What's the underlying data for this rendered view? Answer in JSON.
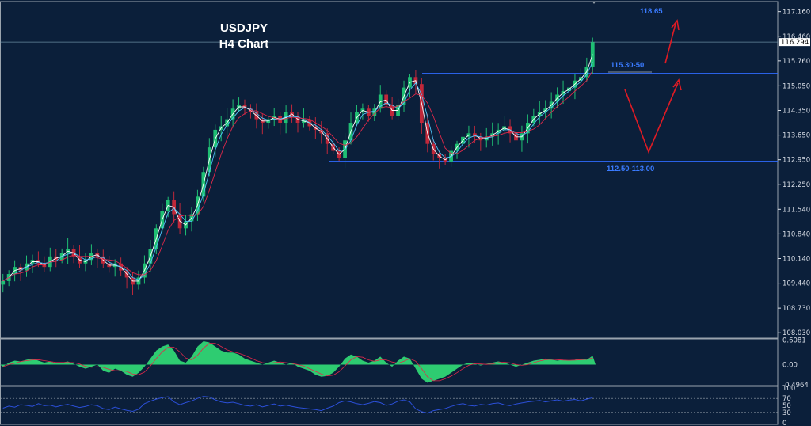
{
  "title": {
    "symbol": "USDJPY",
    "timeframe": "H4 Chart"
  },
  "colors": {
    "background": "#0b1f3a",
    "bull_candle": "#1fbf73",
    "bear_candle": "#c0283a",
    "ma_fast": "#ffffff",
    "ma_mid": "#4fc3f7",
    "ma_slow": "#e0294a",
    "level_line": "#2f6bff",
    "annotation_text": "#3a7bff",
    "arrow": "#e01b24",
    "histogram": "#2ecc71",
    "rsi_line": "#2b4fd8"
  },
  "chart_data": [
    {
      "type": "line",
      "name": "price",
      "y_ticks": [
        "117.160",
        "116.460",
        "115.760",
        "115.050",
        "114.350",
        "113.650",
        "112.950",
        "112.250",
        "111.540",
        "110.840",
        "110.140",
        "109.440",
        "108.730",
        "108.030"
      ],
      "current_price": "116.294",
      "ylim": [
        107.9,
        117.4
      ],
      "series": [
        {
          "name": "",
          "values": [
            109.5,
            109.7,
            109.9,
            109.8,
            110.0,
            110.1,
            110.0,
            109.9,
            110.2,
            110.1,
            110.3,
            110.4,
            110.2,
            110.0,
            110.1,
            110.3,
            110.2,
            110.0,
            109.9,
            110.0,
            109.8,
            109.6,
            109.4,
            109.6,
            110.0,
            110.4,
            111.0,
            111.5,
            111.8,
            111.4,
            111.0,
            111.2,
            111.4,
            111.9,
            112.6,
            113.3,
            113.8,
            113.9,
            114.1,
            114.4,
            114.5,
            114.4,
            114.3,
            114.1,
            114.0,
            114.1,
            114.2,
            114.0,
            114.3,
            114.2,
            114.0,
            114.1,
            113.9,
            113.8,
            113.7,
            113.4,
            113.2,
            113.0,
            113.5,
            114.0,
            114.3,
            114.4,
            114.2,
            114.4,
            114.8,
            114.5,
            114.2,
            114.5,
            115.0,
            115.3,
            115.1,
            114.0,
            113.4,
            113.1,
            113.0,
            112.9,
            113.2,
            113.4,
            113.6,
            113.7,
            113.6,
            113.5,
            113.6,
            113.7,
            113.8,
            113.9,
            113.7,
            113.5,
            113.7,
            114.0,
            114.2,
            114.3,
            114.4,
            114.6,
            114.8,
            114.9,
            115.0,
            115.2,
            115.3,
            115.6,
            116.29
          ]
        }
      ],
      "annotations": [
        "118.65",
        "115.30-50",
        "112.50-113.00"
      ],
      "levels": [
        115.4,
        112.9
      ]
    },
    {
      "type": "area",
      "name": "oscillator",
      "y_ticks": [
        "0.6081",
        "0.00",
        "-0.4964"
      ],
      "ylim": [
        -0.5,
        0.6
      ],
      "values": [
        -0.05,
        0.05,
        0.1,
        0.08,
        0.12,
        0.15,
        0.1,
        0.05,
        0.08,
        0.03,
        0.05,
        0.08,
        0.02,
        -0.05,
        -0.1,
        -0.05,
        0.0,
        -0.15,
        -0.2,
        -0.1,
        -0.15,
        -0.25,
        -0.3,
        -0.2,
        -0.05,
        0.15,
        0.35,
        0.45,
        0.5,
        0.35,
        0.1,
        0.05,
        0.2,
        0.45,
        0.58,
        0.55,
        0.45,
        0.35,
        0.3,
        0.3,
        0.25,
        0.15,
        0.1,
        0.05,
        0.0,
        0.05,
        0.1,
        0.05,
        0.0,
        0.05,
        -0.05,
        -0.1,
        -0.15,
        -0.25,
        -0.3,
        -0.28,
        -0.2,
        -0.05,
        0.15,
        0.25,
        0.2,
        0.1,
        0.05,
        0.1,
        0.2,
        0.05,
        -0.05,
        0.1,
        0.2,
        0.15,
        -0.1,
        -0.35,
        -0.45,
        -0.4,
        -0.35,
        -0.3,
        -0.2,
        -0.1,
        0.0,
        0.05,
        0.02,
        -0.02,
        0.02,
        0.05,
        0.08,
        0.05,
        0.0,
        -0.05,
        0.0,
        0.05,
        0.1,
        0.12,
        0.15,
        0.12,
        0.1,
        0.12,
        0.1,
        0.12,
        0.15,
        0.12,
        0.22
      ]
    },
    {
      "type": "line",
      "name": "rsi",
      "y_ticks": [
        "100",
        "70",
        "50",
        "30",
        "0"
      ],
      "ylim": [
        0,
        100
      ],
      "levels": [
        70,
        30
      ],
      "values": [
        42,
        48,
        45,
        52,
        50,
        47,
        55,
        49,
        51,
        46,
        50,
        53,
        48,
        44,
        47,
        52,
        49,
        41,
        38,
        45,
        40,
        36,
        33,
        39,
        55,
        62,
        68,
        72,
        75,
        60,
        52,
        58,
        63,
        70,
        76,
        74,
        66,
        60,
        57,
        59,
        55,
        50,
        48,
        52,
        46,
        50,
        54,
        48,
        51,
        47,
        44,
        42,
        40,
        38,
        35,
        42,
        48,
        58,
        63,
        60,
        55,
        52,
        56,
        61,
        58,
        50,
        54,
        62,
        66,
        60,
        40,
        32,
        28,
        35,
        38,
        41,
        47,
        52,
        55,
        50,
        48,
        53,
        51,
        55,
        57,
        52,
        49,
        54,
        57,
        60,
        62,
        64,
        60,
        63,
        66,
        62,
        65,
        67,
        63,
        68,
        72
      ]
    }
  ]
}
